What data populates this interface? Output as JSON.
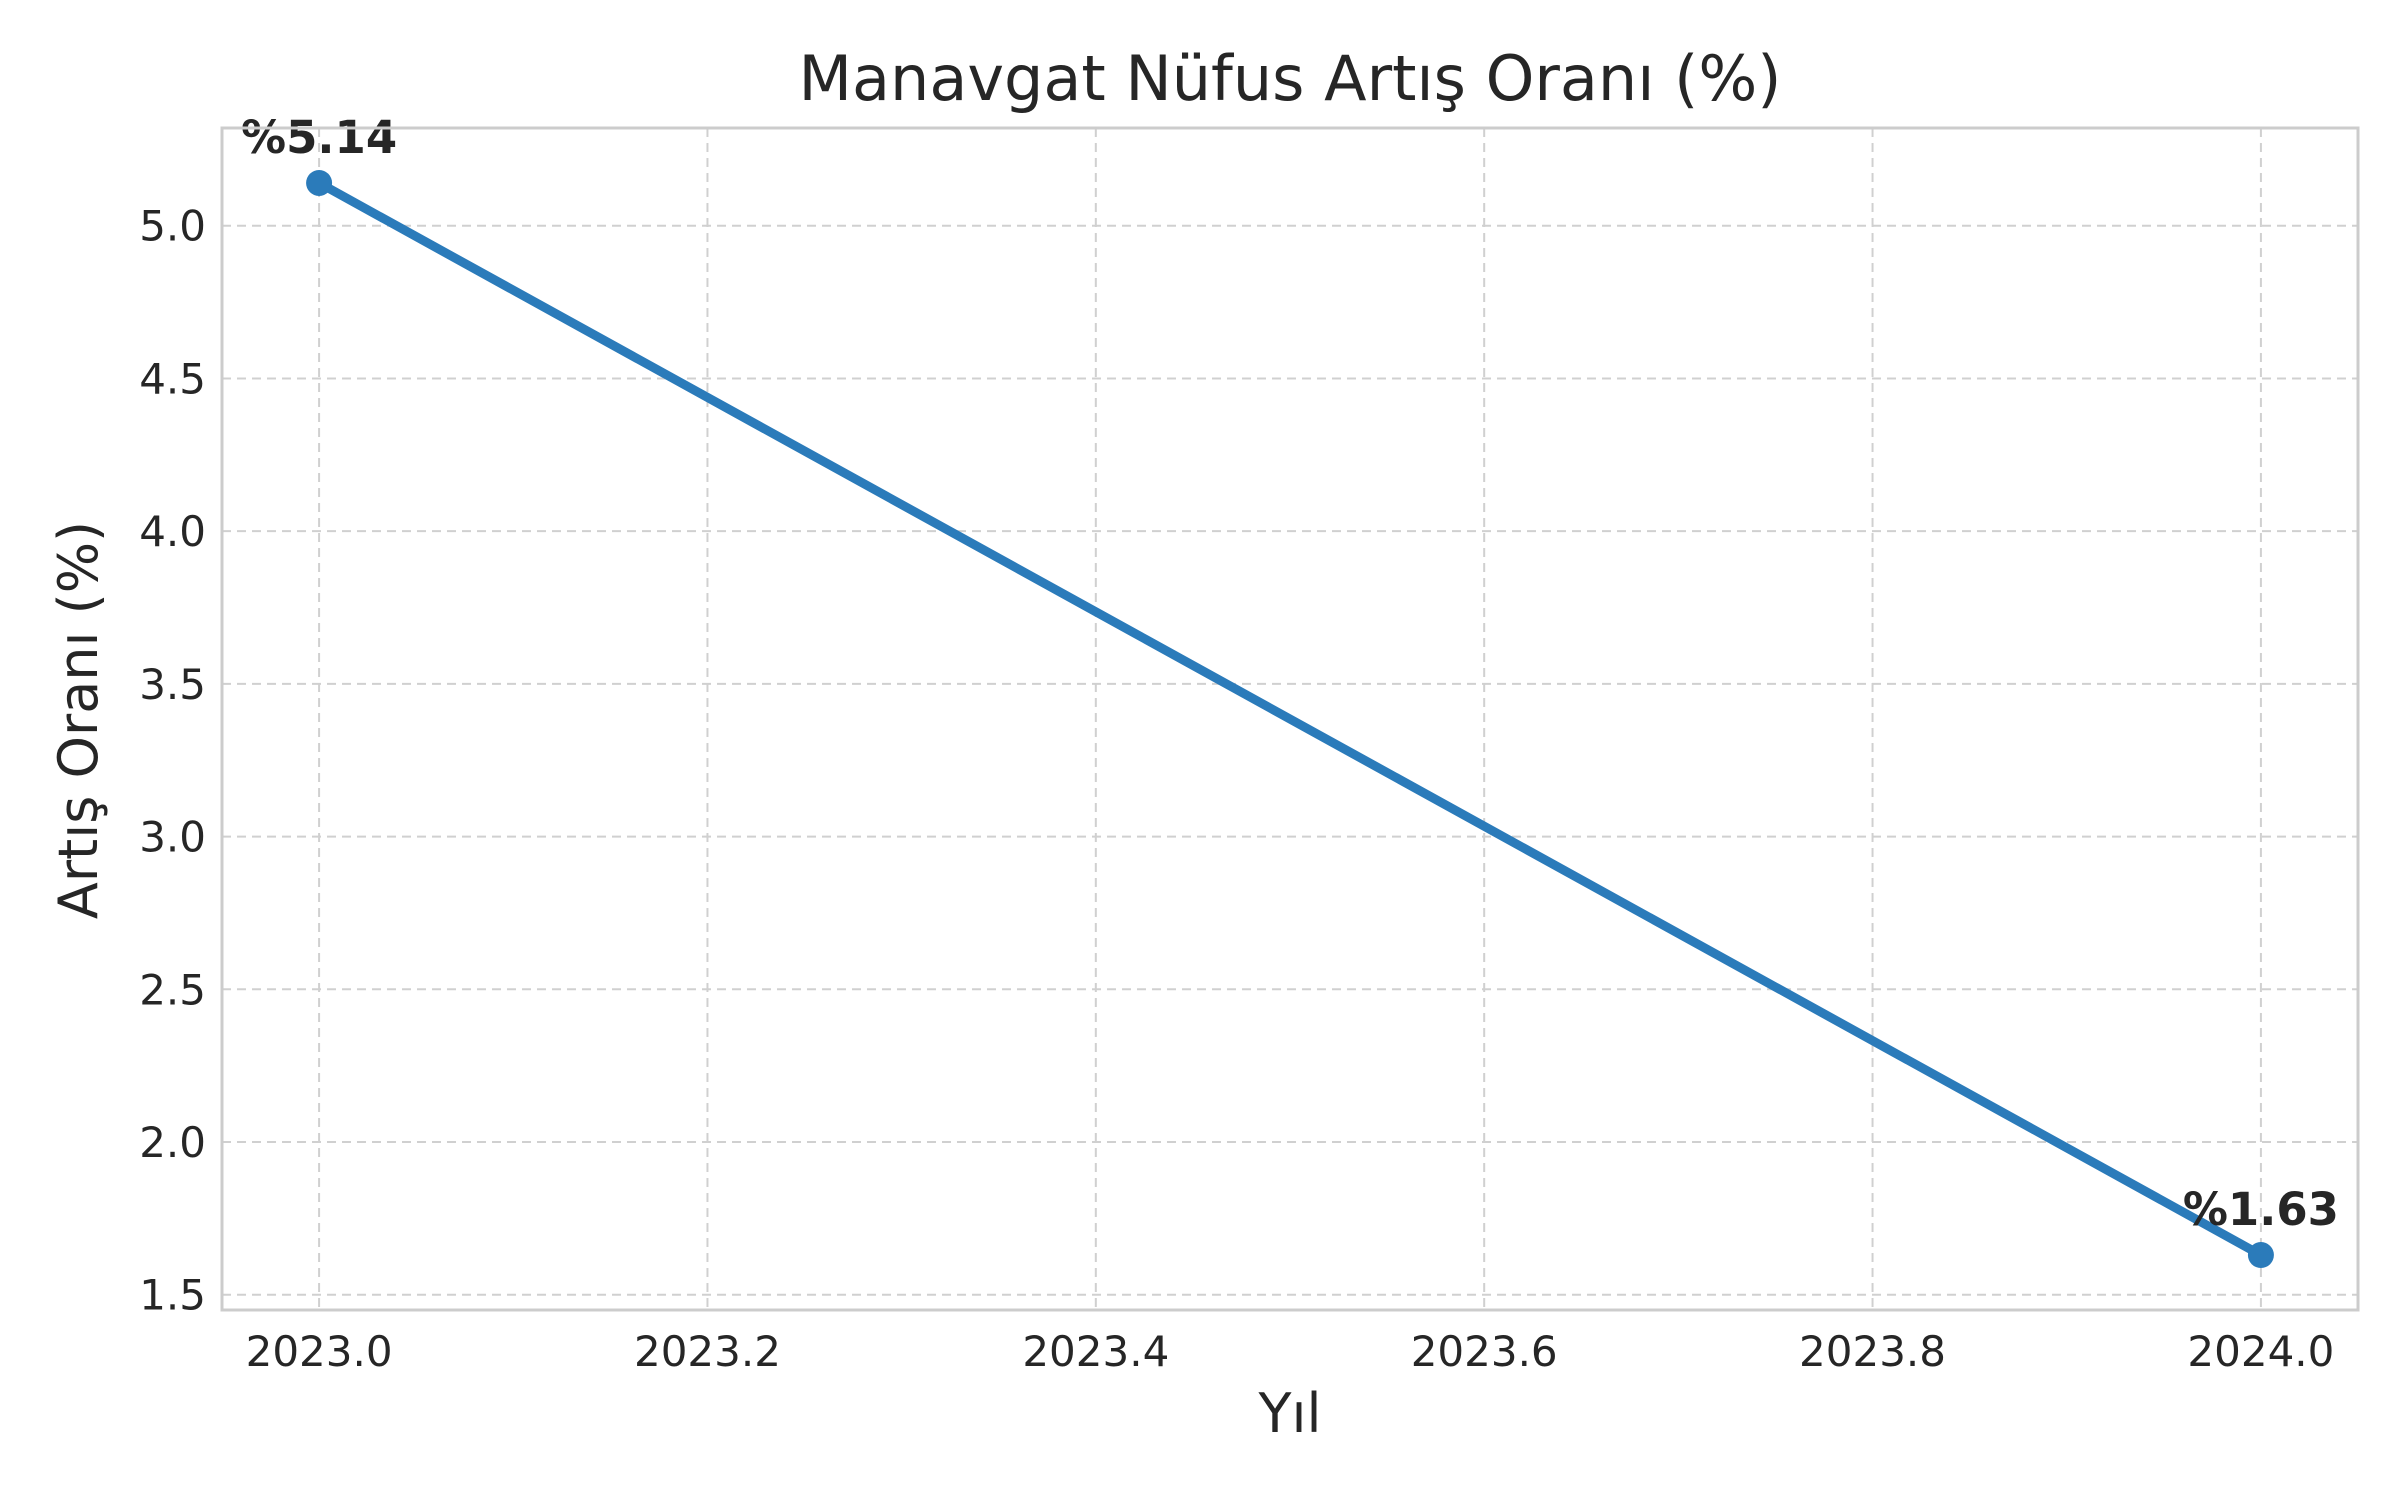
{
  "chart_data": {
    "type": "line",
    "title": "Manavgat Nüfus Artış Oranı (%)",
    "xlabel": "Yıl",
    "ylabel": "Artış Oranı (%)",
    "xlim": [
      2022.95,
      2024.05
    ],
    "ylim": [
      1.45,
      5.32
    ],
    "xticks": [
      2023.0,
      2023.2,
      2023.4,
      2023.6,
      2023.8,
      2024.0
    ],
    "xtick_labels": [
      "2023.0",
      "2023.2",
      "2023.4",
      "2023.6",
      "2023.8",
      "2024.0"
    ],
    "yticks": [
      1.5,
      2.0,
      2.5,
      3.0,
      3.5,
      4.0,
      4.5,
      5.0
    ],
    "ytick_labels": [
      "1.5",
      "2.0",
      "2.5",
      "3.0",
      "3.5",
      "4.0",
      "4.5",
      "5.0"
    ],
    "grid": true,
    "series": [
      {
        "color": "#2b7bba",
        "x": [
          2023,
          2024
        ],
        "y": [
          5.14,
          1.63
        ],
        "labels": [
          "%5.14",
          "%1.63"
        ]
      }
    ]
  }
}
